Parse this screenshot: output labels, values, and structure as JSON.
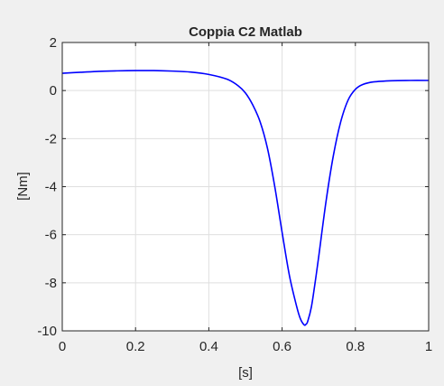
{
  "chart_data": {
    "type": "line",
    "title": "Coppia C2 Matlab",
    "xlabel": "[s]",
    "ylabel": "[Nm]",
    "xlim": [
      0,
      1
    ],
    "ylim": [
      -10,
      2
    ],
    "grid": true,
    "x_ticks": [
      0,
      0.2,
      0.4,
      0.6,
      0.8,
      1
    ],
    "x_tick_labels": [
      "0",
      "0.2",
      "0.4",
      "0.6",
      "0.8",
      "1"
    ],
    "y_ticks": [
      2,
      0,
      -2,
      -4,
      -6,
      -8,
      -10
    ],
    "y_tick_labels": [
      "2",
      "0",
      "-2",
      "-4",
      "-6",
      "-8",
      "-10"
    ],
    "series": [
      {
        "color": "#0000ff",
        "x": [
          0,
          0.05,
          0.1,
          0.15,
          0.2,
          0.25,
          0.3,
          0.35,
          0.4,
          0.45,
          0.48,
          0.5,
          0.52,
          0.54,
          0.56,
          0.58,
          0.6,
          0.62,
          0.64,
          0.65,
          0.66,
          0.665,
          0.67,
          0.68,
          0.69,
          0.7,
          0.72,
          0.74,
          0.76,
          0.78,
          0.8,
          0.82,
          0.85,
          0.9,
          0.95,
          1.0
        ],
        "y": [
          0.72,
          0.76,
          0.8,
          0.82,
          0.83,
          0.83,
          0.81,
          0.77,
          0.67,
          0.47,
          0.2,
          -0.1,
          -0.6,
          -1.3,
          -2.4,
          -4.0,
          -5.9,
          -7.7,
          -9.0,
          -9.5,
          -9.75,
          -9.73,
          -9.6,
          -9.0,
          -8.0,
          -6.9,
          -4.6,
          -2.7,
          -1.3,
          -0.4,
          0.05,
          0.25,
          0.36,
          0.41,
          0.42,
          0.42
        ]
      }
    ]
  }
}
